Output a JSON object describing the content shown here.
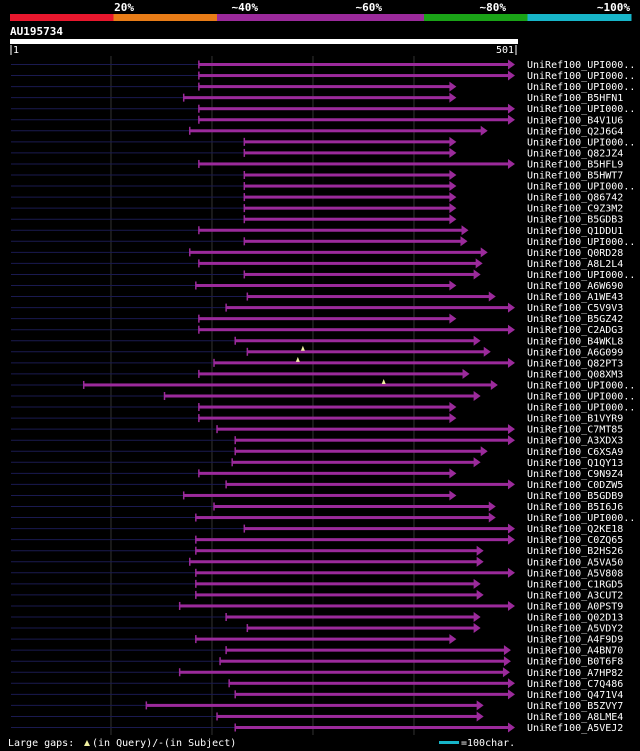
{
  "legend_scale": {
    "segments": [
      {
        "color": "#e8172d"
      },
      {
        "color": "#e87c17"
      },
      {
        "color": "#9b2a9b"
      },
      {
        "color": "#9b2a9b"
      },
      {
        "color": "#1aa317"
      },
      {
        "color": "#17b5c9"
      }
    ],
    "labels": [
      "20%",
      "~40%",
      "~60%",
      "~80%",
      "~100%"
    ]
  },
  "query": {
    "id": "AU195734",
    "start": "1",
    "end": "501",
    "length": 501
  },
  "colors": {
    "hit": "#9b2a9b",
    "background": "#000000",
    "gridline": "#333333",
    "empty": "#1a1a50",
    "triangle": "#f0f0a0"
  },
  "hits": [
    {
      "name": "UniRef100_UPI000..",
      "start": 187,
      "end": 499
    },
    {
      "name": "UniRef100_UPI000..",
      "start": 187,
      "end": 499
    },
    {
      "name": "UniRef100_UPI000..",
      "start": 187,
      "end": 441
    },
    {
      "name": "UniRef100_B5HFN1",
      "start": 172,
      "end": 441
    },
    {
      "name": "UniRef100_UPI000..",
      "start": 187,
      "end": 499
    },
    {
      "name": "UniRef100_B4V1U6",
      "start": 187,
      "end": 499
    },
    {
      "name": "UniRef100_Q2J6G4",
      "start": 178,
      "end": 472
    },
    {
      "name": "UniRef100_UPI000..",
      "start": 232,
      "end": 441
    },
    {
      "name": "UniRef100_Q82JZ4",
      "start": 232,
      "end": 441
    },
    {
      "name": "UniRef100_B5HFL9",
      "start": 187,
      "end": 499
    },
    {
      "name": "UniRef100_B5HWT7",
      "start": 232,
      "end": 441
    },
    {
      "name": "UniRef100_UPI000..",
      "start": 232,
      "end": 441
    },
    {
      "name": "UniRef100_Q86742",
      "start": 232,
      "end": 441
    },
    {
      "name": "UniRef100_C9Z3M2",
      "start": 232,
      "end": 441
    },
    {
      "name": "UniRef100_B5GDB3",
      "start": 232,
      "end": 441
    },
    {
      "name": "UniRef100_Q1DDU1",
      "start": 187,
      "end": 453
    },
    {
      "name": "UniRef100_UPI000..",
      "start": 232,
      "end": 452
    },
    {
      "name": "UniRef100_Q0RD28",
      "start": 178,
      "end": 472
    },
    {
      "name": "UniRef100_A8L2L4",
      "start": 187,
      "end": 467
    },
    {
      "name": "UniRef100_UPI000..",
      "start": 232,
      "end": 465
    },
    {
      "name": "UniRef100_A6W690",
      "start": 184,
      "end": 441
    },
    {
      "name": "UniRef100_A1WE43",
      "start": 235,
      "end": 480
    },
    {
      "name": "UniRef100_C5V9V3",
      "start": 214,
      "end": 499
    },
    {
      "name": "UniRef100_B5GZ42",
      "start": 187,
      "end": 441
    },
    {
      "name": "UniRef100_C2ADG3",
      "start": 187,
      "end": 499
    },
    {
      "name": "UniRef100_B4WKL8",
      "start": 223,
      "end": 465
    },
    {
      "name": "UniRef100_A6G099",
      "start": 235,
      "end": 475
    },
    {
      "name": "UniRef100_Q82PT3",
      "start": 202,
      "end": 499
    },
    {
      "name": "UniRef100_Q08XM3",
      "start": 187,
      "end": 454
    },
    {
      "name": "UniRef100_UPI000..",
      "start": 73,
      "end": 482
    },
    {
      "name": "UniRef100_UPI000..",
      "start": 153,
      "end": 465
    },
    {
      "name": "UniRef100_UPI000..",
      "start": 187,
      "end": 441
    },
    {
      "name": "UniRef100_B1VYR9",
      "start": 187,
      "end": 441
    },
    {
      "name": "UniRef100_C7MT85",
      "start": 205,
      "end": 499
    },
    {
      "name": "UniRef100_A3XDX3",
      "start": 223,
      "end": 499
    },
    {
      "name": "UniRef100_C6XSA9",
      "start": 223,
      "end": 472
    },
    {
      "name": "UniRef100_Q1QY13",
      "start": 220,
      "end": 465
    },
    {
      "name": "UniRef100_C9N9Z4",
      "start": 187,
      "end": 441
    },
    {
      "name": "UniRef100_C0DZW5",
      "start": 214,
      "end": 499
    },
    {
      "name": "UniRef100_B5GDB9",
      "start": 172,
      "end": 441
    },
    {
      "name": "UniRef100_B5I6J6",
      "start": 202,
      "end": 480
    },
    {
      "name": "UniRef100_UPI000..",
      "start": 184,
      "end": 480
    },
    {
      "name": "UniRef100_Q2KE18",
      "start": 232,
      "end": 499
    },
    {
      "name": "UniRef100_C0ZQ65",
      "start": 184,
      "end": 499
    },
    {
      "name": "UniRef100_B2HS26",
      "start": 184,
      "end": 468
    },
    {
      "name": "UniRef100_A5VA50",
      "start": 178,
      "end": 468
    },
    {
      "name": "UniRef100_A5V808",
      "start": 184,
      "end": 499
    },
    {
      "name": "UniRef100_C1RGD5",
      "start": 184,
      "end": 465
    },
    {
      "name": "UniRef100_A3CUT2",
      "start": 184,
      "end": 468
    },
    {
      "name": "UniRef100_A0PST9",
      "start": 168,
      "end": 499
    },
    {
      "name": "UniRef100_Q02D13",
      "start": 214,
      "end": 465
    },
    {
      "name": "UniRef100_A5VDY2",
      "start": 235,
      "end": 465
    },
    {
      "name": "UniRef100_A4F9D9",
      "start": 184,
      "end": 441
    },
    {
      "name": "UniRef100_A4BN70",
      "start": 214,
      "end": 495
    },
    {
      "name": "UniRef100_B0T6F8",
      "start": 208,
      "end": 495
    },
    {
      "name": "UniRef100_A7HP82",
      "start": 168,
      "end": 494
    },
    {
      "name": "UniRef100_C7Q486",
      "start": 217,
      "end": 499
    },
    {
      "name": "UniRef100_Q471V4",
      "start": 223,
      "end": 499
    },
    {
      "name": "UniRef100_B5ZVY7",
      "start": 135,
      "end": 468
    },
    {
      "name": "UniRef100_A8LME4",
      "start": 205,
      "end": 468
    },
    {
      "name": "UniRef100_A5VEJ2",
      "start": 223,
      "end": 499
    }
  ],
  "footer": {
    "gaps_prefix": "Large gaps: ",
    "gaps_query": "(in Query)/",
    "gaps_dash": "-",
    "gaps_subject": " (in Subject)",
    "scale_text": "=100char."
  }
}
